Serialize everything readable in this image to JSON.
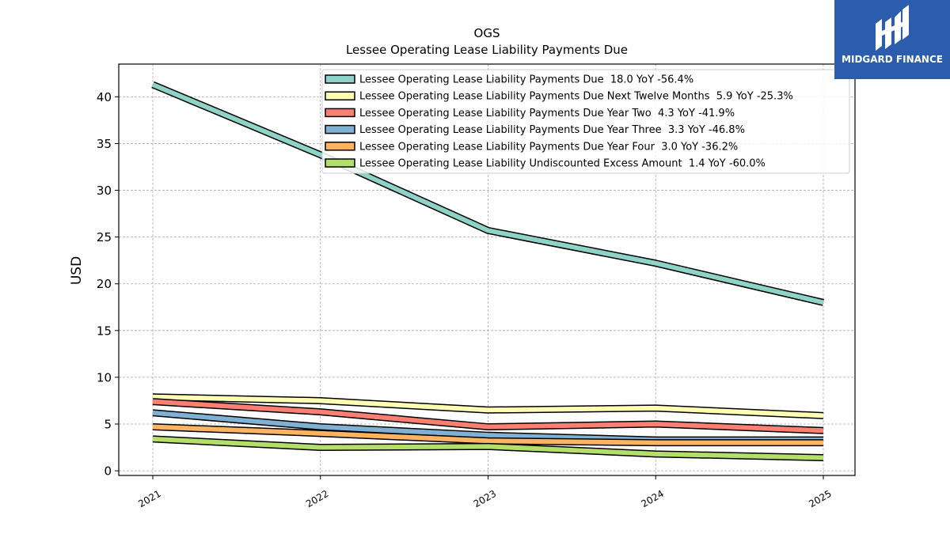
{
  "brand": {
    "name": "MIDGARD FINANCE",
    "color": "#2b5cad"
  },
  "chart_data": {
    "type": "line",
    "title": "OGS",
    "subtitle": "Lessee Operating Lease Liability Payments Due",
    "ylabel": "USD",
    "xlabel": "",
    "x": [
      "2021",
      "2022",
      "2023",
      "2024",
      "2025"
    ],
    "ylim": [
      -0.5,
      43.5
    ],
    "yticks": [
      0,
      5,
      10,
      15,
      20,
      25,
      30,
      35,
      40
    ],
    "grid": true,
    "legend_position": "top-right",
    "series": [
      {
        "name": "Lessee Operating Lease Liability Payments Due  18.0 YoY -56.4%",
        "color": "#8dd3c7",
        "values": [
          41.3,
          33.8,
          25.7,
          22.2,
          18.0
        ]
      },
      {
        "name": "Lessee Operating Lease Liability Payments Due Next Twelve Months  5.9 YoY -25.3%",
        "color": "#ffffb3",
        "values": [
          7.9,
          7.5,
          6.5,
          6.7,
          5.9
        ]
      },
      {
        "name": "Lessee Operating Lease Liability Payments Due Year Two  4.3 YoY -41.9%",
        "color": "#fb8072",
        "values": [
          7.4,
          6.3,
          4.7,
          5.0,
          4.3
        ]
      },
      {
        "name": "Lessee Operating Lease Liability Payments Due Year Three  3.3 YoY -46.8%",
        "color": "#80b1d3",
        "values": [
          6.2,
          4.7,
          3.8,
          3.3,
          3.3
        ]
      },
      {
        "name": "Lessee Operating Lease Liability Payments Due Year Four  3.0 YoY -36.2%",
        "color": "#fdb462",
        "values": [
          4.7,
          4.0,
          3.2,
          3.0,
          3.0
        ]
      },
      {
        "name": "Lessee Operating Lease Liability Undiscounted Excess Amount  1.4 YoY -60.0%",
        "color": "#b3de69",
        "values": [
          3.4,
          2.5,
          2.6,
          1.8,
          1.4
        ]
      }
    ]
  }
}
